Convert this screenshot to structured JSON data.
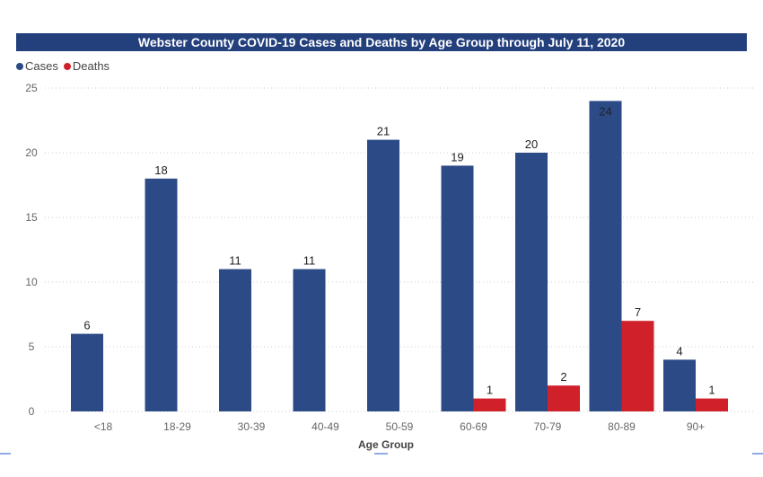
{
  "chart_data": {
    "type": "bar",
    "title": "Webster County COVID-19 Cases and Deaths by Age Group through July 11, 2020",
    "xlabel": "Age Group",
    "ylabel": "",
    "categories": [
      "<18",
      "18-29",
      "30-39",
      "40-49",
      "50-59",
      "60-69",
      "70-79",
      "80-89",
      "90+"
    ],
    "series": [
      {
        "name": "Cases",
        "color": "#2b4a86",
        "values": [
          6,
          18,
          11,
          11,
          21,
          19,
          20,
          24,
          4
        ]
      },
      {
        "name": "Deaths",
        "color": "#d0202a",
        "values": [
          null,
          null,
          null,
          null,
          null,
          1,
          2,
          7,
          1
        ]
      }
    ],
    "ylim": [
      0,
      25
    ],
    "yticks": [
      0,
      5,
      10,
      15,
      20,
      25
    ],
    "grid": true,
    "legend": "top-left"
  }
}
